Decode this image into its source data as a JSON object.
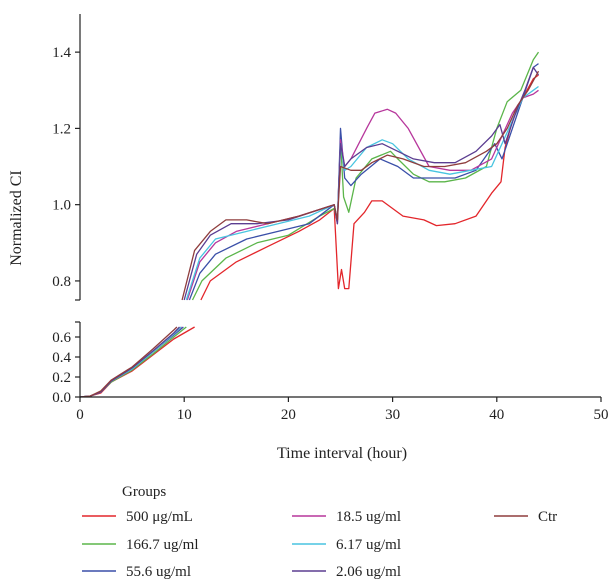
{
  "chart_data": {
    "type": "line",
    "xlabel": "Time interval (hour)",
    "ylabel": "Normalized CI",
    "xlim": [
      0,
      50
    ],
    "xticks": [
      0,
      10,
      20,
      30,
      40,
      50
    ],
    "ylim_upper": [
      0.75,
      1.5
    ],
    "yticks_upper": [
      0.8,
      1.0,
      1.2,
      1.4
    ],
    "ylim_lower": [
      0,
      0.75
    ],
    "yticks_lower": [
      0.0,
      0.2,
      0.4,
      0.6
    ],
    "y_axis_break": [
      0.7,
      0.75
    ],
    "grid": false,
    "legend": {
      "title": "Groups",
      "placement": "bottom"
    },
    "series": [
      {
        "name": "500 μg/mL",
        "color": "#e3262b",
        "points": [
          [
            0,
            0
          ],
          [
            1,
            0.01
          ],
          [
            2,
            0.04
          ],
          [
            3,
            0.15
          ],
          [
            5,
            0.26
          ],
          [
            7,
            0.42
          ],
          [
            9,
            0.58
          ],
          [
            11,
            0.7
          ],
          [
            11.6,
            0.75
          ],
          [
            12.5,
            0.8
          ],
          [
            15,
            0.85
          ],
          [
            18,
            0.89
          ],
          [
            21,
            0.93
          ],
          [
            23,
            0.96
          ],
          [
            24.4,
            0.99
          ],
          [
            24.8,
            0.78
          ],
          [
            25.1,
            0.83
          ],
          [
            25.4,
            0.78
          ],
          [
            25.8,
            0.78
          ],
          [
            26.3,
            0.95
          ],
          [
            27.3,
            0.98
          ],
          [
            28,
            1.01
          ],
          [
            29,
            1.01
          ],
          [
            30,
            0.99
          ],
          [
            31,
            0.97
          ],
          [
            33,
            0.96
          ],
          [
            34.2,
            0.945
          ],
          [
            36,
            0.95
          ],
          [
            38,
            0.97
          ],
          [
            39.5,
            1.03
          ],
          [
            40.4,
            1.06
          ],
          [
            40.8,
            1.15
          ],
          [
            41.5,
            1.22
          ],
          [
            42.5,
            1.28
          ],
          [
            43.5,
            1.33
          ],
          [
            44,
            1.34
          ]
        ]
      },
      {
        "name": "166.7 ug/ml",
        "color": "#5bb54a",
        "points": [
          [
            0,
            0
          ],
          [
            1,
            0.01
          ],
          [
            2,
            0.05
          ],
          [
            3,
            0.15
          ],
          [
            5,
            0.27
          ],
          [
            7,
            0.43
          ],
          [
            9,
            0.6
          ],
          [
            10.8,
            0.75
          ],
          [
            11.7,
            0.8
          ],
          [
            14,
            0.86
          ],
          [
            17,
            0.9
          ],
          [
            20,
            0.92
          ],
          [
            23,
            0.97
          ],
          [
            24.4,
            0.99
          ],
          [
            24.7,
            0.96
          ],
          [
            25,
            1.17
          ],
          [
            25.3,
            1.02
          ],
          [
            25.8,
            0.98
          ],
          [
            26.5,
            1.07
          ],
          [
            28,
            1.12
          ],
          [
            29.8,
            1.14
          ],
          [
            30.5,
            1.12
          ],
          [
            32,
            1.08
          ],
          [
            33.5,
            1.06
          ],
          [
            35,
            1.06
          ],
          [
            37,
            1.07
          ],
          [
            39,
            1.1
          ],
          [
            40,
            1.2
          ],
          [
            41,
            1.27
          ],
          [
            42.3,
            1.3
          ],
          [
            43.5,
            1.38
          ],
          [
            44,
            1.4
          ]
        ]
      },
      {
        "name": "55.6 ug/ml",
        "color": "#3a4fa8",
        "points": [
          [
            0,
            0
          ],
          [
            1,
            0.01
          ],
          [
            2,
            0.05
          ],
          [
            3,
            0.16
          ],
          [
            5,
            0.28
          ],
          [
            7,
            0.45
          ],
          [
            9,
            0.62
          ],
          [
            10.5,
            0.75
          ],
          [
            11.5,
            0.82
          ],
          [
            13,
            0.87
          ],
          [
            16,
            0.91
          ],
          [
            19,
            0.93
          ],
          [
            22,
            0.95
          ],
          [
            24.4,
            1.0
          ],
          [
            24.7,
            0.95
          ],
          [
            25,
            1.2
          ],
          [
            25.4,
            1.07
          ],
          [
            26,
            1.05
          ],
          [
            27,
            1.08
          ],
          [
            28.8,
            1.12
          ],
          [
            30.5,
            1.1
          ],
          [
            32,
            1.07
          ],
          [
            34,
            1.07
          ],
          [
            36,
            1.07
          ],
          [
            38,
            1.09
          ],
          [
            39.8,
            1.16
          ],
          [
            40.5,
            1.12
          ],
          [
            41.5,
            1.2
          ],
          [
            42.5,
            1.28
          ],
          [
            43.5,
            1.36
          ],
          [
            44,
            1.37
          ]
        ]
      },
      {
        "name": "18.5 ug/ml",
        "color": "#b7379c",
        "points": [
          [
            0,
            0
          ],
          [
            1,
            0.01
          ],
          [
            2,
            0.05
          ],
          [
            3,
            0.16
          ],
          [
            5,
            0.28
          ],
          [
            7,
            0.45
          ],
          [
            9,
            0.63
          ],
          [
            10.3,
            0.75
          ],
          [
            11.5,
            0.85
          ],
          [
            13,
            0.9
          ],
          [
            15,
            0.93
          ],
          [
            18,
            0.95
          ],
          [
            21,
            0.97
          ],
          [
            24.4,
            1.0
          ],
          [
            24.7,
            0.96
          ],
          [
            25,
            1.17
          ],
          [
            25.4,
            1.1
          ],
          [
            26,
            1.12
          ],
          [
            27.5,
            1.2
          ],
          [
            28.3,
            1.24
          ],
          [
            29.5,
            1.25
          ],
          [
            30.3,
            1.24
          ],
          [
            31.5,
            1.2
          ],
          [
            33.5,
            1.1
          ],
          [
            35.5,
            1.09
          ],
          [
            37.5,
            1.09
          ],
          [
            39.5,
            1.12
          ],
          [
            40.5,
            1.18
          ],
          [
            41.5,
            1.24
          ],
          [
            42.5,
            1.28
          ],
          [
            43.5,
            1.29
          ],
          [
            44,
            1.3
          ]
        ]
      },
      {
        "name": "6.17 ug/ml",
        "color": "#48c4e0",
        "points": [
          [
            0,
            0
          ],
          [
            1,
            0.01
          ],
          [
            2,
            0.05
          ],
          [
            3,
            0.16
          ],
          [
            5,
            0.28
          ],
          [
            7,
            0.45
          ],
          [
            9,
            0.63
          ],
          [
            10.2,
            0.75
          ],
          [
            11.5,
            0.86
          ],
          [
            13,
            0.91
          ],
          [
            16,
            0.93
          ],
          [
            19,
            0.95
          ],
          [
            22,
            0.97
          ],
          [
            24.4,
            1.0
          ],
          [
            24.7,
            0.96
          ],
          [
            25,
            1.16
          ],
          [
            25.4,
            1.09
          ],
          [
            26,
            1.1
          ],
          [
            27.5,
            1.15
          ],
          [
            29,
            1.17
          ],
          [
            30,
            1.16
          ],
          [
            31.5,
            1.12
          ],
          [
            33.5,
            1.09
          ],
          [
            35.5,
            1.08
          ],
          [
            37.5,
            1.09
          ],
          [
            39.5,
            1.1
          ],
          [
            40.5,
            1.16
          ],
          [
            41.5,
            1.22
          ],
          [
            42.5,
            1.28
          ],
          [
            43.5,
            1.3
          ],
          [
            44,
            1.31
          ]
        ]
      },
      {
        "name": "2.06 ug/ml",
        "color": "#5b3d91",
        "points": [
          [
            0,
            0
          ],
          [
            1,
            0.01
          ],
          [
            2,
            0.05
          ],
          [
            3,
            0.16
          ],
          [
            5,
            0.29
          ],
          [
            7,
            0.46
          ],
          [
            9,
            0.64
          ],
          [
            10,
            0.75
          ],
          [
            11.2,
            0.87
          ],
          [
            12.5,
            0.92
          ],
          [
            14.5,
            0.95
          ],
          [
            17,
            0.95
          ],
          [
            20,
            0.96
          ],
          [
            24.4,
            1.0
          ],
          [
            24.7,
            0.95
          ],
          [
            25,
            1.16
          ],
          [
            25.4,
            1.1
          ],
          [
            26,
            1.12
          ],
          [
            27.5,
            1.15
          ],
          [
            29,
            1.16
          ],
          [
            30.5,
            1.14
          ],
          [
            32,
            1.12
          ],
          [
            34,
            1.11
          ],
          [
            36,
            1.11
          ],
          [
            38,
            1.14
          ],
          [
            39.5,
            1.18
          ],
          [
            40.3,
            1.21
          ],
          [
            40.8,
            1.16
          ],
          [
            41.8,
            1.24
          ],
          [
            42.7,
            1.3
          ],
          [
            43.5,
            1.36
          ],
          [
            44,
            1.34
          ]
        ]
      },
      {
        "name": "Ctr",
        "color": "#8f3d3d",
        "points": [
          [
            0,
            0
          ],
          [
            1,
            0.01
          ],
          [
            2,
            0.06
          ],
          [
            3,
            0.17
          ],
          [
            5,
            0.3
          ],
          [
            7,
            0.48
          ],
          [
            9,
            0.67
          ],
          [
            9.8,
            0.75
          ],
          [
            11,
            0.88
          ],
          [
            12.5,
            0.93
          ],
          [
            14,
            0.96
          ],
          [
            16,
            0.96
          ],
          [
            18,
            0.95
          ],
          [
            21,
            0.97
          ],
          [
            24.4,
            1.0
          ],
          [
            24.7,
            0.96
          ],
          [
            25,
            1.1
          ],
          [
            26,
            1.09
          ],
          [
            27,
            1.09
          ],
          [
            28,
            1.11
          ],
          [
            29.5,
            1.13
          ],
          [
            31,
            1.12
          ],
          [
            33,
            1.1
          ],
          [
            35,
            1.1
          ],
          [
            37,
            1.11
          ],
          [
            39,
            1.14
          ],
          [
            40,
            1.16
          ],
          [
            41,
            1.2
          ],
          [
            42,
            1.26
          ],
          [
            43,
            1.3
          ],
          [
            44,
            1.35
          ]
        ]
      }
    ]
  }
}
